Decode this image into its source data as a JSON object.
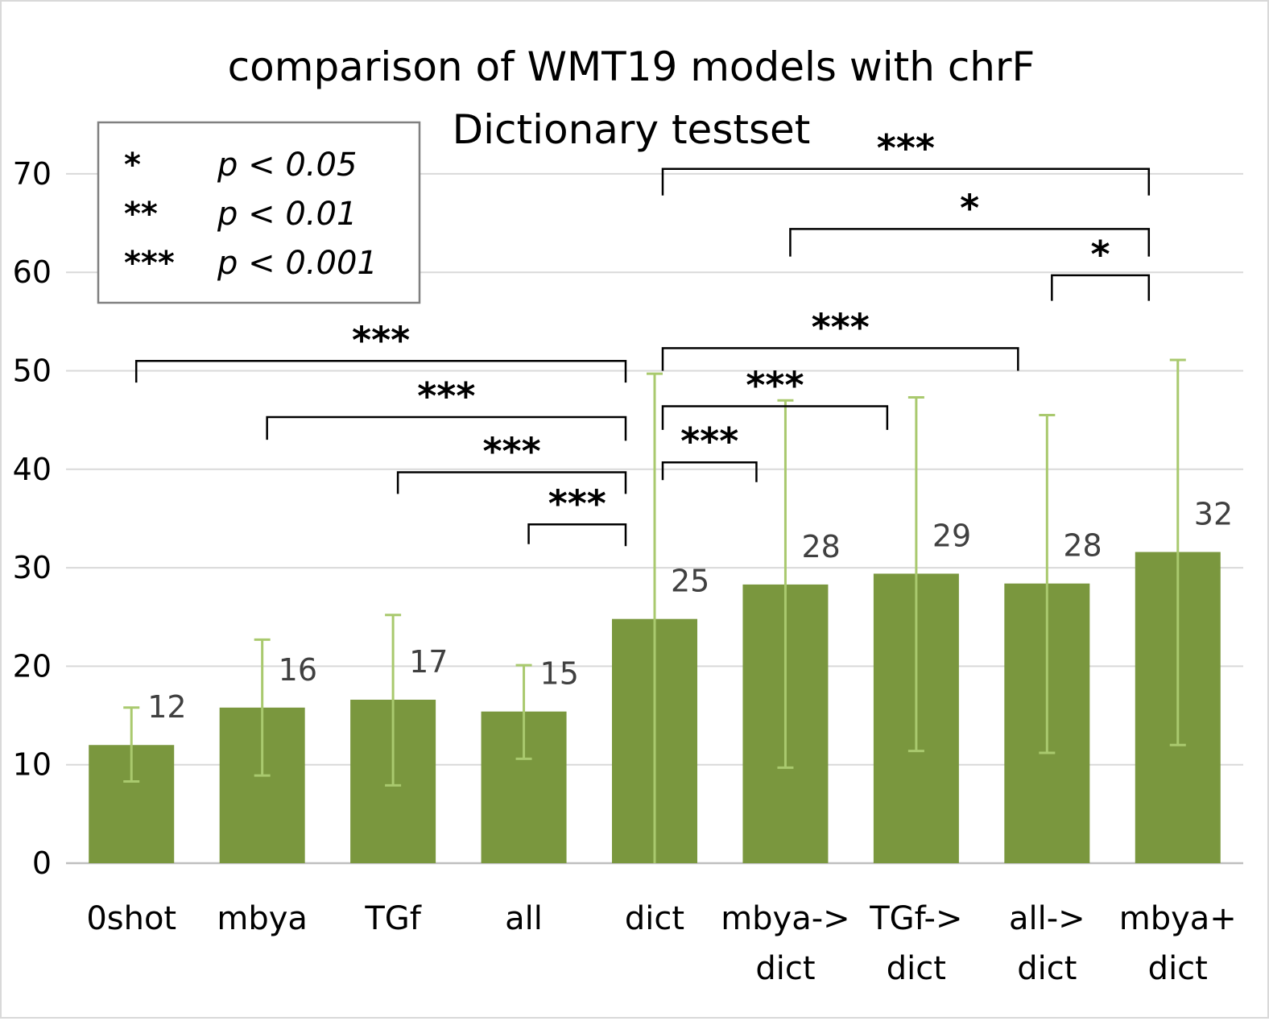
{
  "chart_data": {
    "type": "bar",
    "title": "comparison of WMT19 models with chrF",
    "subtitle": "Dictionary testset",
    "categories": [
      [
        "0shot"
      ],
      [
        "mbya"
      ],
      [
        "TGf"
      ],
      [
        "all"
      ],
      [
        "dict"
      ],
      [
        "mbya->",
        "dict"
      ],
      [
        "TGf->",
        "dict"
      ],
      [
        "all->",
        "dict"
      ],
      [
        "mbya+",
        "dict"
      ]
    ],
    "values": [
      12.0,
      15.8,
      16.6,
      15.4,
      24.8,
      28.3,
      29.4,
      28.4,
      31.6
    ],
    "value_labels": [
      "12",
      "16",
      "17",
      "15",
      "25",
      "28",
      "29",
      "28",
      "32"
    ],
    "error_low": [
      8.3,
      8.9,
      7.9,
      10.6,
      0.0,
      9.7,
      11.4,
      11.2,
      12.0
    ],
    "error_high": [
      15.8,
      22.7,
      25.2,
      20.1,
      49.7,
      47.0,
      47.3,
      45.5,
      51.1
    ],
    "ylim": [
      0,
      70
    ],
    "yticks": [
      0,
      10,
      20,
      30,
      40,
      50,
      60,
      70
    ],
    "grid": true,
    "colors": {
      "bar": "#7a973e",
      "error": "#a9c96e",
      "grid": "#d9d9d9",
      "label": "#404040"
    },
    "significance": [
      {
        "from": 0,
        "to": 4,
        "stars": "***",
        "y": 51.0,
        "y_from": 48.8,
        "y_to": 48.8
      },
      {
        "from": 1,
        "to": 4,
        "stars": "***",
        "y": 45.3,
        "y_from": 43.0,
        "y_to": 42.9
      },
      {
        "from": 2,
        "to": 4,
        "stars": "***",
        "y": 39.7,
        "y_from": 37.5,
        "y_to": 37.5
      },
      {
        "from": 3,
        "to": 4,
        "stars": "***",
        "y": 34.4,
        "y_from": 32.4,
        "y_to": 32.2
      },
      {
        "from": 4,
        "to": 5,
        "stars": "***",
        "y": 40.7,
        "y_from": 38.9,
        "y_to": 38.7
      },
      {
        "from": 4,
        "to": 6,
        "stars": "***",
        "y": 46.4,
        "y_from": 44.0,
        "y_to": 44.0
      },
      {
        "from": 4,
        "to": 7,
        "stars": "***",
        "y": 52.3,
        "y_from": 50.0,
        "y_to": 50.0
      },
      {
        "from": 7,
        "to": 8,
        "stars": "*",
        "y": 59.7,
        "y_from": 57.1,
        "y_to": 57.1
      },
      {
        "from": 5,
        "to": 8,
        "stars": "*",
        "y": 64.4,
        "y_from": 61.6,
        "y_to": 61.6
      },
      {
        "from": 4,
        "to": 8,
        "stars": "***",
        "y": 70.5,
        "y_from": 67.8,
        "y_to": 67.8
      }
    ],
    "legend": [
      {
        "symbol": "*",
        "text": "p < 0.05"
      },
      {
        "symbol": "**",
        "text": "p < 0.01"
      },
      {
        "symbol": "***",
        "text": "p < 0.001"
      }
    ],
    "legend_position": "top-left"
  }
}
